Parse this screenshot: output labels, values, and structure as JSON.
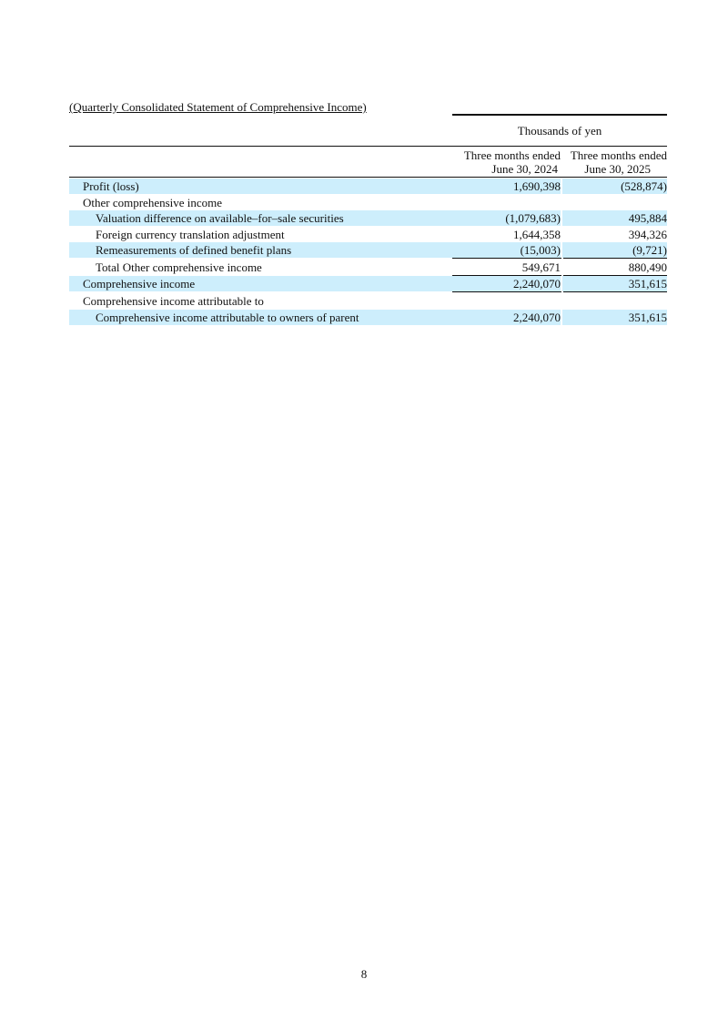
{
  "title": "(Quarterly Consolidated Statement of Comprehensive Income)",
  "unit": "Thousands of yen",
  "columns": [
    {
      "line1": "Three months ended",
      "line2": "June 30, 2024"
    },
    {
      "line1": "Three months ended",
      "line2": "June 30, 2025"
    }
  ],
  "highlight_color": "#cdeefc",
  "rows": [
    {
      "label": "Profit (loss)",
      "v1": "1,690,398",
      "v2": "(528,874)"
    },
    {
      "label": "Other comprehensive income",
      "v1": "",
      "v2": ""
    },
    {
      "label": "Valuation difference on available–for–sale securities",
      "v1": "(1,079,683)",
      "v2": "495,884"
    },
    {
      "label": "Foreign currency translation adjustment",
      "v1": "1,644,358",
      "v2": "394,326"
    },
    {
      "label": "Remeasurements of defined benefit plans",
      "v1": "(15,003)",
      "v2": "(9,721)"
    },
    {
      "label": "Total Other comprehensive income",
      "v1": "549,671",
      "v2": "880,490"
    },
    {
      "label": "Comprehensive income",
      "v1": "2,240,070",
      "v2": "351,615"
    },
    {
      "label": "Comprehensive income attributable to",
      "v1": "",
      "v2": ""
    },
    {
      "label": "Comprehensive income attributable to owners of parent",
      "v1": "2,240,070",
      "v2": "351,615"
    }
  ],
  "page_number": "8"
}
